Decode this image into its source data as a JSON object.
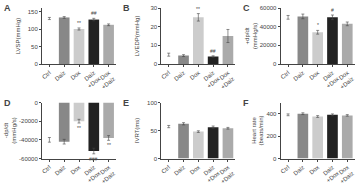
{
  "chart_data": [
    {
      "type": "bar",
      "title": "A",
      "ylabel": "LVSP(mmHg)",
      "categories": [
        "Ctrl",
        "Daiz",
        "Dox",
        "Daiz\n+Dox",
        "Dox\n+Daiz"
      ],
      "values": [
        130,
        133,
        100,
        127,
        112
      ],
      "errors": [
        3,
        2.5,
        3,
        3.5,
        2.5
      ],
      "colors": [
        "white",
        "#888888",
        "#cccccc",
        "#222222",
        "#aaaaaa"
      ],
      "ylim": [
        0,
        160
      ],
      "yticks": [
        0,
        50,
        100,
        150
      ],
      "grid": false,
      "annotations": [
        {
          "category": "Dox",
          "text": "**"
        },
        {
          "category": "Daiz\n+Dox",
          "text": "##"
        }
      ]
    },
    {
      "type": "bar",
      "title": "B",
      "ylabel": "LVEDP(mmHg)",
      "categories": [
        "Ctrl",
        "Daiz",
        "Dox",
        "Daiz\n+Dox",
        "Dox\n+Daiz"
      ],
      "values": [
        5,
        4.5,
        25,
        4,
        15
      ],
      "errors": [
        0.8,
        0.5,
        2,
        0.4,
        3.5
      ],
      "colors": [
        "white",
        "#888888",
        "#cccccc",
        "#222222",
        "#aaaaaa"
      ],
      "ylim": [
        0,
        30
      ],
      "yticks": [
        0,
        10,
        20,
        30
      ],
      "grid": false,
      "annotations": [
        {
          "category": "Dox",
          "text": "**"
        },
        {
          "category": "Daiz\n+Dox",
          "text": "##"
        }
      ]
    },
    {
      "type": "bar",
      "title": "C",
      "ylabel": "+dp/dt\n(mmHg/s)",
      "categories": [
        "Ctrl",
        "Daiz",
        "Dox",
        "Daiz\n+Dox",
        "Dox\n+Daiz"
      ],
      "values": [
        50000,
        51000,
        34000,
        50000,
        43000
      ],
      "errors": [
        2000,
        2500,
        2000,
        2500,
        2000
      ],
      "colors": [
        "white",
        "#888888",
        "#cccccc",
        "#222222",
        "#aaaaaa"
      ],
      "ylim": [
        0,
        60000
      ],
      "yticks": [
        0,
        20000,
        40000,
        60000
      ],
      "grid": false,
      "annotations": [
        {
          "category": "Dox",
          "text": "*"
        },
        {
          "category": "Daiz\n+Dox",
          "text": "#"
        }
      ]
    },
    {
      "type": "bar",
      "title": "D",
      "ylabel": "-dp/dt\n(mmHg/s)",
      "categories": [
        "Ctrl",
        "Daiz",
        "Dox",
        "Daiz\n+Dox",
        "Dox\n+Daiz"
      ],
      "values": [
        -40000,
        -42000,
        -20000,
        -52000,
        -38000
      ],
      "errors": [
        2500,
        2500,
        2000,
        3000,
        2500
      ],
      "colors": [
        "white",
        "#888888",
        "#cccccc",
        "#222222",
        "#aaaaaa"
      ],
      "ylim": [
        -60000,
        0
      ],
      "yticks": [
        -60000,
        -40000,
        -20000,
        0
      ],
      "grid": false,
      "annotations": [
        {
          "category": "Dox",
          "text": "**"
        },
        {
          "category": "Daiz\n+Dox",
          "text": "###"
        },
        {
          "category": "Dox\n+Daiz",
          "text": "**"
        }
      ]
    },
    {
      "type": "bar",
      "title": "E",
      "ylabel": "IVRT(ms)",
      "categories": [
        "Ctrl",
        "Daiz",
        "Dox",
        "Daiz\n+Dox",
        "Dox\n+Daiz"
      ],
      "values": [
        57,
        62,
        48,
        56,
        54
      ],
      "errors": [
        2,
        2,
        1.5,
        2,
        1.5
      ],
      "colors": [
        "white",
        "#888888",
        "#cccccc",
        "#222222",
        "#aaaaaa"
      ],
      "ylim": [
        0,
        100
      ],
      "yticks": [
        0,
        50,
        100
      ],
      "grid": false
    },
    {
      "type": "bar",
      "title": "F",
      "ylabel": "Heart rate\n(beats/min)",
      "categories": [
        "Ctrl",
        "Daiz",
        "Dox",
        "Daiz\n+Dox",
        "Dox\n+Daiz"
      ],
      "values": [
        390,
        400,
        375,
        390,
        385
      ],
      "errors": [
        8,
        8,
        8,
        8,
        7
      ],
      "colors": [
        "white",
        "#888888",
        "#cccccc",
        "#222222",
        "#aaaaaa"
      ],
      "ylim": [
        0,
        500
      ],
      "yticks": [
        0,
        200,
        400
      ],
      "grid": false
    }
  ]
}
